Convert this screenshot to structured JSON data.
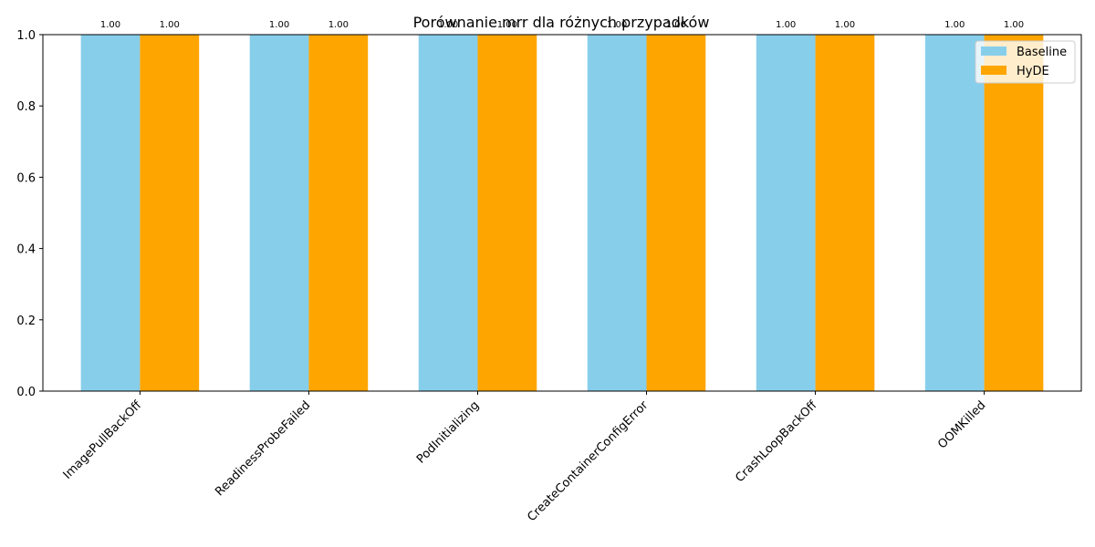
{
  "chart_data": {
    "type": "bar",
    "title": "Porównanie mrr dla różnych przypadków",
    "xlabel": "",
    "ylabel": "",
    "categories": [
      "ImagePullBackOff",
      "ReadinessProbeFailed",
      "PodInitializing",
      "CreateContainerConfigError",
      "CrashLoopBackOff",
      "OOMKilled"
    ],
    "series": [
      {
        "name": "Baseline",
        "color": "#87CEEB",
        "values": [
          1.0,
          1.0,
          1.0,
          1.0,
          1.0,
          1.0
        ],
        "labels": [
          "1.00",
          "1.00",
          "1.00",
          "1.00",
          "1.00",
          "1.00"
        ]
      },
      {
        "name": "HyDE",
        "color": "#FFA500",
        "values": [
          1.0,
          1.0,
          1.0,
          1.0,
          1.0,
          1.0
        ],
        "labels": [
          "1.00",
          "1.00",
          "1.00",
          "1.00",
          "1.00",
          "1.00"
        ]
      }
    ],
    "ylim": [
      0,
      1
    ],
    "yticks": [
      "0.0",
      "0.2",
      "0.4",
      "0.6",
      "0.8",
      "1.0"
    ],
    "grid": false,
    "legend_position": "top-right"
  }
}
